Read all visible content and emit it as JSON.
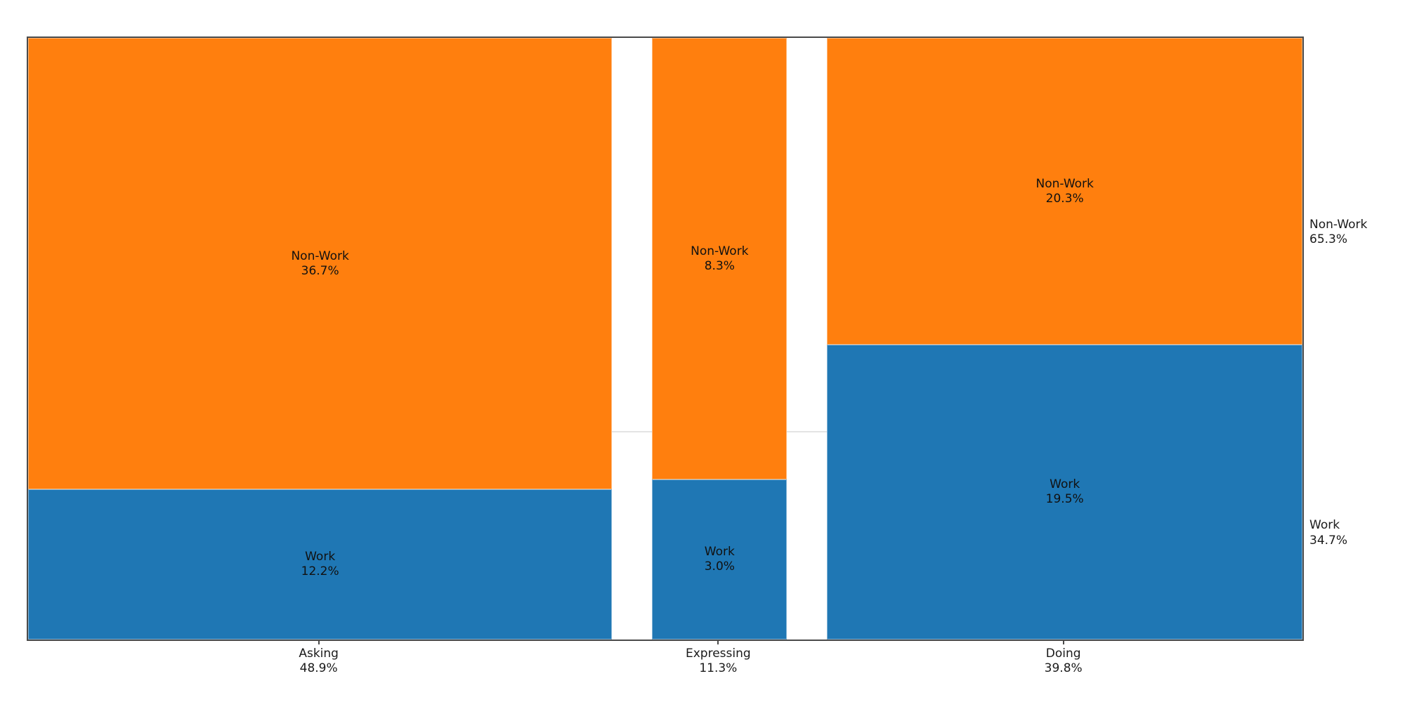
{
  "chart_data": {
    "type": "mosaic",
    "title": "",
    "orientation": "columns are x-categories sized by percent; each column split vertically into segments",
    "columns": [
      {
        "label": "Asking",
        "value": 48.9,
        "display": "48.9%",
        "cells": [
          {
            "label": "Non-Work",
            "value": 36.7,
            "display": "36.7%",
            "color_key": "non_work"
          },
          {
            "label": "Work",
            "value": 12.2,
            "display": "12.2%",
            "color_key": "work"
          }
        ]
      },
      {
        "label": "Expressing",
        "value": 11.3,
        "display": "11.3%",
        "cells": [
          {
            "label": "Non-Work",
            "value": 8.3,
            "display": "8.3%",
            "color_key": "non_work"
          },
          {
            "label": "Work",
            "value": 3.0,
            "display": "3.0%",
            "color_key": "work"
          }
        ]
      },
      {
        "label": "Doing",
        "value": 39.8,
        "display": "39.8%",
        "cells": [
          {
            "label": "Non-Work",
            "value": 20.3,
            "display": "20.3%",
            "color_key": "non_work"
          },
          {
            "label": "Work",
            "value": 19.5,
            "display": "19.5%",
            "color_key": "work"
          }
        ]
      }
    ],
    "row_totals": [
      {
        "label": "Non-Work",
        "value": 65.3,
        "display": "65.3%"
      },
      {
        "label": "Work",
        "value": 34.7,
        "display": "34.7%"
      }
    ],
    "colors": {
      "non_work": "#ff7f0e",
      "work": "#1f77b4"
    },
    "layout_hints": {
      "legend": "none",
      "grid": false,
      "column_gap_line_color": "#e4e4e4",
      "spine_color": "#4a4a4a"
    }
  }
}
